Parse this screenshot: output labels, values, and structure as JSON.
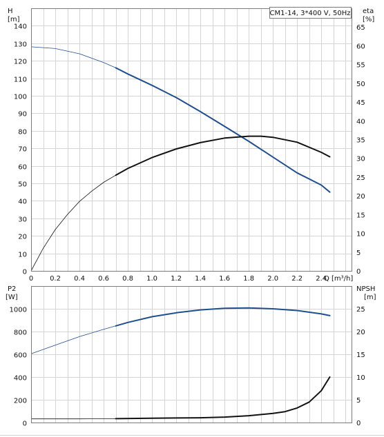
{
  "chart_data": [
    {
      "type": "line",
      "legend_label": "CM1-14, 3*400 V, 50Hz",
      "legend_placement": "top-right",
      "ylabel_left_name": "H",
      "ylabel_left_unit": "[m]",
      "ylabel_right_name": "eta",
      "ylabel_right_unit": "[%]",
      "xlabel_q": "Q",
      "xlabel_unit": "[m³/h]",
      "xlim": [
        0,
        2.65
      ],
      "ylim_left": [
        0,
        150
      ],
      "ylim_right": [
        0,
        70
      ],
      "x_ticks": [
        "0",
        "0.2",
        "0.4",
        "0.6",
        "0.8",
        "1.0",
        "1.2",
        "1.4",
        "1.6",
        "1.8",
        "2.0",
        "2.2",
        "2.4"
      ],
      "y_ticks_left": [
        "0",
        "10",
        "20",
        "30",
        "40",
        "50",
        "60",
        "70",
        "80",
        "90",
        "100",
        "110",
        "120",
        "130",
        "140"
      ],
      "y_ticks_right": [
        "0",
        "5",
        "10",
        "15",
        "20",
        "25",
        "30",
        "35",
        "40",
        "45",
        "50",
        "55",
        "60",
        "65"
      ],
      "grid": true,
      "series": [
        {
          "axis": "left",
          "color": "#1f4e8c",
          "operating_range_start": 0.7,
          "points": [
            [
              0,
              128
            ],
            [
              0.2,
              127
            ],
            [
              0.4,
              124
            ],
            [
              0.6,
              119
            ],
            [
              0.7,
              116
            ],
            [
              0.8,
              112.5
            ],
            [
              1.0,
              106
            ],
            [
              1.2,
              99
            ],
            [
              1.4,
              91
            ],
            [
              1.6,
              82.5
            ],
            [
              1.8,
              74
            ],
            [
              2.0,
              65
            ],
            [
              2.2,
              56
            ],
            [
              2.4,
              49
            ],
            [
              2.47,
              45
            ]
          ]
        },
        {
          "axis": "right",
          "color": "#111111",
          "operating_range_start": 0.7,
          "points": [
            [
              0,
              0
            ],
            [
              0.1,
              6
            ],
            [
              0.2,
              11
            ],
            [
              0.3,
              15
            ],
            [
              0.4,
              18.5
            ],
            [
              0.5,
              21.2
            ],
            [
              0.6,
              23.6
            ],
            [
              0.7,
              25.5
            ],
            [
              0.8,
              27.3
            ],
            [
              1.0,
              30.2
            ],
            [
              1.2,
              32.5
            ],
            [
              1.4,
              34.2
            ],
            [
              1.6,
              35.4
            ],
            [
              1.8,
              35.9
            ],
            [
              1.9,
              35.9
            ],
            [
              2.0,
              35.6
            ],
            [
              2.2,
              34.3
            ],
            [
              2.4,
              31.6
            ],
            [
              2.47,
              30.4
            ]
          ]
        }
      ]
    },
    {
      "type": "line",
      "ylabel_left_name": "P2",
      "ylabel_left_unit": "[W]",
      "ylabel_right_name": "NPSH",
      "ylabel_right_unit": "[m]",
      "xlim": [
        0,
        2.65
      ],
      "ylim_left": [
        0,
        1200
      ],
      "ylim_right": [
        0,
        30
      ],
      "y_ticks_left": [
        "0",
        "200",
        "400",
        "600",
        "800",
        "1000"
      ],
      "y_ticks_right": [
        "0",
        "5",
        "10",
        "15",
        "20",
        "25"
      ],
      "grid": true,
      "series": [
        {
          "axis": "left",
          "color": "#1f4e8c",
          "operating_range_start": 0.7,
          "points": [
            [
              0,
              605
            ],
            [
              0.2,
              680
            ],
            [
              0.4,
              755
            ],
            [
              0.6,
              820
            ],
            [
              0.7,
              850
            ],
            [
              0.8,
              880
            ],
            [
              1.0,
              930
            ],
            [
              1.2,
              965
            ],
            [
              1.4,
              990
            ],
            [
              1.6,
              1005
            ],
            [
              1.8,
              1008
            ],
            [
              2.0,
              1000
            ],
            [
              2.2,
              985
            ],
            [
              2.4,
              955
            ],
            [
              2.47,
              940
            ]
          ]
        },
        {
          "axis": "right",
          "color": "#111111",
          "operating_range_start": 0.7,
          "points": [
            [
              0,
              0.8
            ],
            [
              0.4,
              0.8
            ],
            [
              0.7,
              0.85
            ],
            [
              1.0,
              0.95
            ],
            [
              1.2,
              1.0
            ],
            [
              1.4,
              1.05
            ],
            [
              1.6,
              1.2
            ],
            [
              1.8,
              1.5
            ],
            [
              2.0,
              2.0
            ],
            [
              2.1,
              2.4
            ],
            [
              2.2,
              3.2
            ],
            [
              2.3,
              4.5
            ],
            [
              2.4,
              7.0
            ],
            [
              2.47,
              10.0
            ]
          ]
        }
      ]
    }
  ]
}
